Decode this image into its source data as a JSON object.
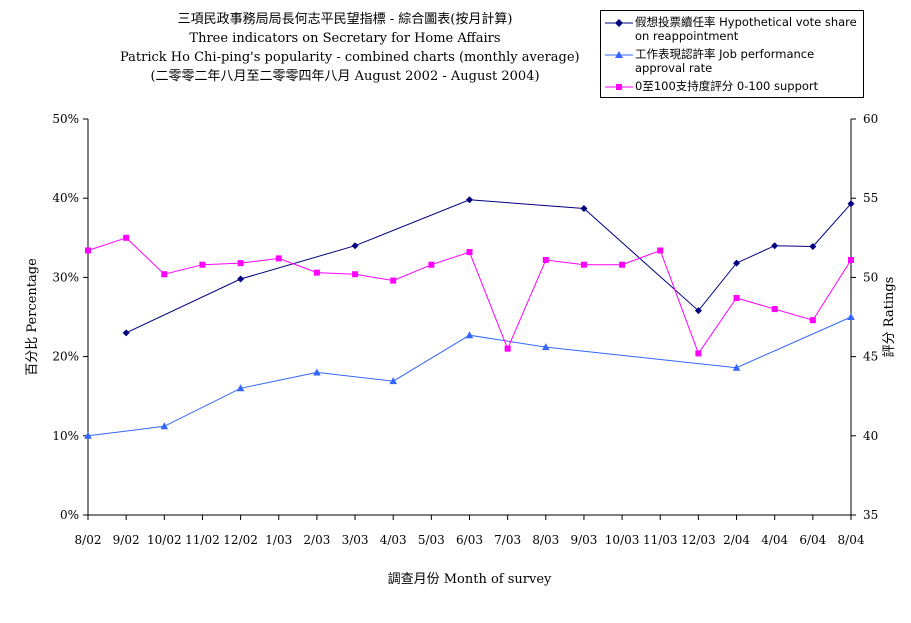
{
  "title": {
    "line1": "三項民政事務局局長何志平民望指標 - 綜合圖表(按月計算)",
    "line2": "Three indicators on Secretary for Home Affairs",
    "line3": "Patrick Ho Chi-ping's popularity - combined charts (monthly average)",
    "line4": "(二零零二年八月至二零零四年八月 August 2002 - August 2004)"
  },
  "colors": {
    "vote": "#000080",
    "job": "#3366ff",
    "support": "#ff00ff"
  },
  "chart_data": {
    "type": "line",
    "categories": [
      "8/02",
      "9/02",
      "10/02",
      "11/02",
      "12/02",
      "1/03",
      "2/03",
      "3/03",
      "4/03",
      "5/03",
      "6/03",
      "7/03",
      "8/03",
      "9/03",
      "10/03",
      "11/03",
      "12/03",
      "2/04",
      "4/04",
      "6/04",
      "8/04"
    ],
    "xlabel": "調查月份 Month of survey",
    "ylabel_left": "百分比 Percentage",
    "ylabel_right": "評分 Ratings",
    "y_left": {
      "min": 0,
      "max": 50,
      "ticks": [
        "0%",
        "10%",
        "20%",
        "30%",
        "40%",
        "50%"
      ]
    },
    "y_right": {
      "min": 35,
      "max": 60,
      "ticks": [
        "35",
        "40",
        "45",
        "50",
        "55",
        "60"
      ]
    },
    "series": [
      {
        "name": "假想投票續任率 Hypothetical vote share on reappointment",
        "axis": "left",
        "marker": "diamond",
        "values": [
          null,
          23,
          null,
          null,
          29.8,
          null,
          null,
          34,
          null,
          null,
          39.8,
          null,
          null,
          38.7,
          null,
          null,
          25.8,
          31.8,
          34,
          33.9,
          39.3
        ]
      },
      {
        "name": "工作表現認許率 Job performance approval rate",
        "axis": "left",
        "marker": "triangle",
        "values": [
          10,
          null,
          11.2,
          null,
          16,
          null,
          18,
          null,
          16.9,
          null,
          22.7,
          null,
          21.2,
          null,
          null,
          null,
          null,
          18.6,
          null,
          null,
          25
        ]
      },
      {
        "name": "0至100支持度評分 0-100 support",
        "axis": "right",
        "marker": "square",
        "values": [
          51.7,
          52.5,
          50.2,
          50.8,
          50.9,
          51.2,
          50.3,
          50.2,
          49.8,
          50.8,
          51.6,
          45.5,
          51.1,
          50.8,
          50.8,
          51.7,
          45.2,
          48.7,
          48,
          47.3,
          51.1
        ]
      }
    ]
  }
}
